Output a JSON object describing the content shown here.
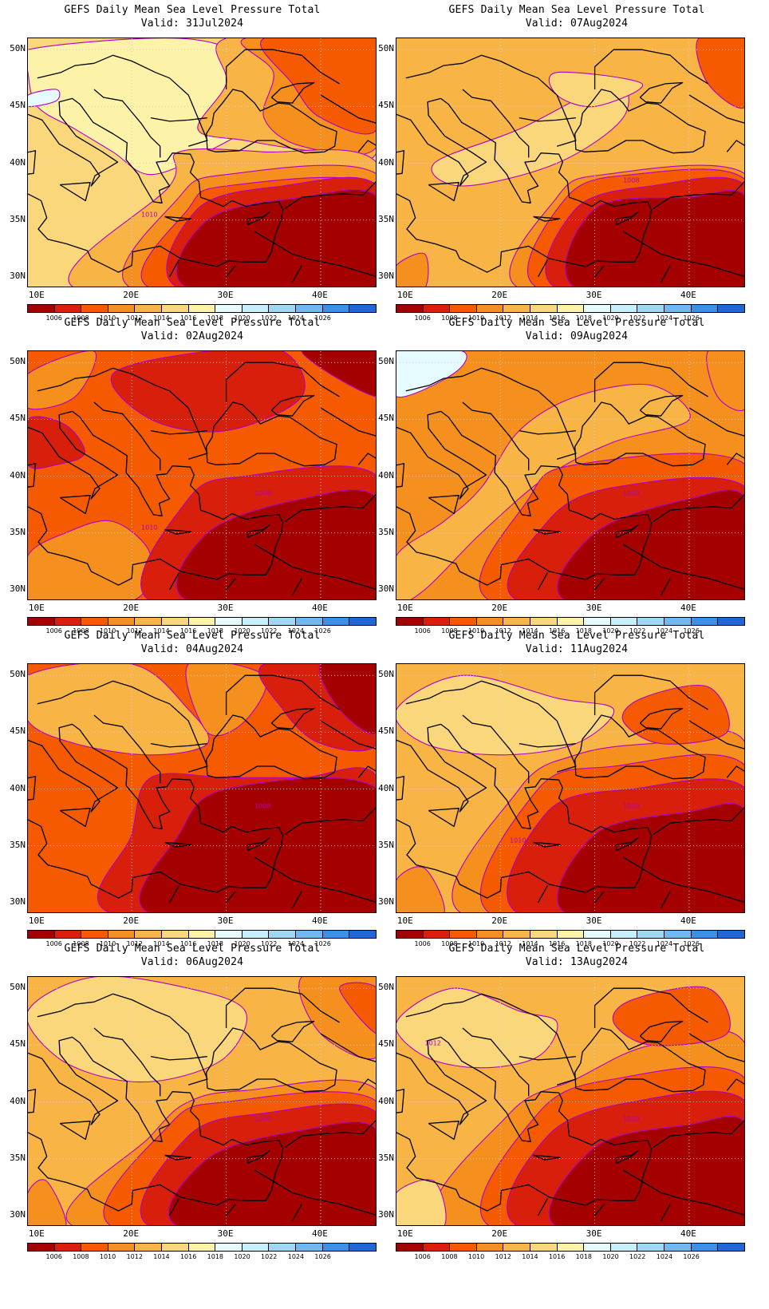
{
  "figure_title": "GEFS Daily Mean Sea Level Pressure Total",
  "valid_prefix": "Valid:",
  "panels": [
    {
      "valid": "31Jul2024",
      "labels": [
        "1010"
      ]
    },
    {
      "valid": "07Aug2024",
      "labels": [
        "1008"
      ]
    },
    {
      "valid": "02Aug2024",
      "labels": [
        "1008",
        "1010"
      ]
    },
    {
      "valid": "09Aug2024",
      "labels": [
        "1008"
      ]
    },
    {
      "valid": "04Aug2024",
      "labels": [
        "1008"
      ]
    },
    {
      "valid": "11Aug2024",
      "labels": [
        "1008",
        "1010"
      ]
    },
    {
      "valid": "06Aug2024",
      "labels": [
        "1008"
      ]
    },
    {
      "valid": "13Aug2024",
      "labels": [
        "1008",
        "1012"
      ]
    }
  ],
  "lat_labels": [
    "50N",
    "45N",
    "40N",
    "35N",
    "30N"
  ],
  "lon_labels": [
    "10E",
    "20E",
    "30E",
    "40E"
  ],
  "colorbar": {
    "labels": [
      "1006",
      "1008",
      "1010",
      "1012",
      "1014",
      "1016",
      "1018",
      "1020",
      "1022",
      "1024",
      "1026"
    ],
    "colors": [
      "#a50000",
      "#d81f0b",
      "#f55a00",
      "#f5901e",
      "#f9b446",
      "#fbd77c",
      "#fdf3a8",
      "#e6fbff",
      "#c6f0ff",
      "#9ed8f5",
      "#6fb8f0",
      "#3a8fe8",
      "#1f66d8"
    ]
  }
}
